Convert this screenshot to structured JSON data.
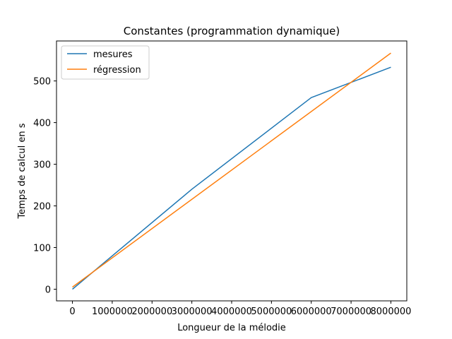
{
  "chart_data": {
    "type": "line",
    "title": "Constantes (programmation dynamique)",
    "xlabel": "Longueur de la mélodie",
    "ylabel": "Temps de calcul en s",
    "xlim": [
      -400000,
      8400000
    ],
    "ylim": [
      -28,
      596
    ],
    "x_ticks": [
      0,
      1000000,
      2000000,
      3000000,
      4000000,
      5000000,
      6000000,
      7000000,
      8000000
    ],
    "x_tick_labels": [
      "0",
      "1000000",
      "2000000",
      "3000000",
      "4000000",
      "5000000",
      "6000000",
      "7000000",
      "8000000"
    ],
    "y_ticks": [
      0,
      100,
      200,
      300,
      400,
      500
    ],
    "y_tick_labels": [
      "0",
      "100",
      "200",
      "300",
      "400",
      "500"
    ],
    "grid": false,
    "legend_position": "top-left",
    "series": [
      {
        "name": "mesures",
        "color": "#1f77b4",
        "x": [
          0,
          3000000,
          6000000,
          8000000
        ],
        "y": [
          0,
          240,
          460,
          533
        ]
      },
      {
        "name": "régression",
        "color": "#ff7f0e",
        "x": [
          0,
          8000000
        ],
        "y": [
          5,
          567
        ]
      }
    ]
  }
}
